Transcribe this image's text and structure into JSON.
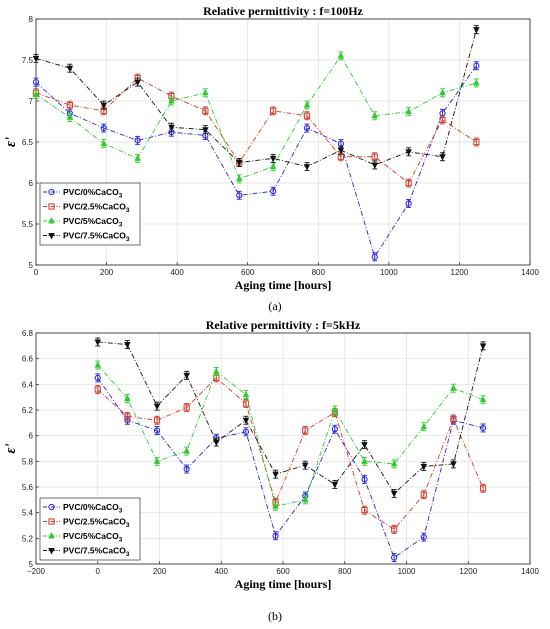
{
  "chart_data": [
    {
      "type": "line",
      "caption": "(a)",
      "title": "Relative permittivity : f=100Hz",
      "xlabel": "Aging time [hours]",
      "ylabel": "ε'",
      "xlim": [
        0,
        1400
      ],
      "ylim": [
        5,
        8
      ],
      "xticks": [
        0,
        200,
        400,
        600,
        800,
        1000,
        1200,
        1400
      ],
      "yticks": [
        5,
        5.5,
        6,
        6.5,
        7,
        7.5,
        8
      ],
      "ytick_labels": [
        "5",
        "5.5",
        "6",
        "6.5",
        "7",
        "7.5",
        "8"
      ],
      "grid": true,
      "legend_position": "bottom-left",
      "x": [
        0,
        96,
        192,
        288,
        384,
        480,
        576,
        672,
        768,
        864,
        960,
        1056,
        1152,
        1248
      ],
      "series": [
        {
          "name": "PVC/0%CaCO3",
          "color": "#2323e0",
          "marker": "circle",
          "values": [
            7.23,
            6.85,
            6.67,
            6.52,
            6.62,
            6.58,
            5.85,
            5.9,
            6.67,
            6.48,
            5.1,
            5.75,
            6.85,
            7.43
          ]
        },
        {
          "name": "PVC/2.5%CaCO3",
          "color": "#d23a2a",
          "marker": "square",
          "values": [
            7.1,
            6.95,
            6.88,
            7.28,
            7.06,
            6.88,
            6.25,
            6.88,
            6.82,
            6.32,
            6.32,
            6.0,
            6.77,
            6.5
          ]
        },
        {
          "name": "PVC/5%CaCO3",
          "color": "#2ecc2e",
          "marker": "triangle-up",
          "values": [
            7.08,
            6.8,
            6.48,
            6.3,
            7.0,
            7.1,
            6.05,
            6.2,
            6.95,
            7.55,
            6.82,
            6.87,
            7.1,
            7.22
          ]
        },
        {
          "name": "PVC/7.5%CaCO3",
          "color": "#111111",
          "marker": "triangle-down",
          "values": [
            7.52,
            7.4,
            6.95,
            7.23,
            6.68,
            6.65,
            6.25,
            6.3,
            6.2,
            6.4,
            6.22,
            6.38,
            6.32,
            7.87
          ]
        }
      ]
    },
    {
      "type": "line",
      "caption": "(b)",
      "title": "Relative permittivity : f=5kHz",
      "xlabel": "Aging time [hours]",
      "ylabel": "ε'",
      "xlim": [
        -200,
        1400
      ],
      "ylim": [
        5,
        6.8
      ],
      "xticks": [
        -200,
        0,
        200,
        400,
        600,
        800,
        1000,
        1200,
        1400
      ],
      "yticks": [
        5,
        5.2,
        5.4,
        5.6,
        5.8,
        6,
        6.2,
        6.4,
        6.6,
        6.8
      ],
      "ytick_labels": [
        "5",
        "5.2",
        "5.4",
        "5.6",
        "5.8",
        "6",
        "6.2",
        "6.4",
        "6.6",
        "6.8"
      ],
      "grid": true,
      "legend_position": "bottom-left",
      "x": [
        0,
        96,
        192,
        288,
        384,
        480,
        576,
        672,
        768,
        864,
        960,
        1056,
        1152,
        1248
      ],
      "series": [
        {
          "name": "PVC/0%CaCO3",
          "color": "#2323e0",
          "marker": "circle",
          "values": [
            6.45,
            6.12,
            6.04,
            5.74,
            5.98,
            6.03,
            5.22,
            5.53,
            6.05,
            5.66,
            5.05,
            5.21,
            6.12,
            6.06
          ]
        },
        {
          "name": "PVC/2.5%CaCO3",
          "color": "#d23a2a",
          "marker": "square",
          "values": [
            6.36,
            6.15,
            6.12,
            6.22,
            6.45,
            6.25,
            5.48,
            6.04,
            6.18,
            5.42,
            5.27,
            5.54,
            6.13,
            5.59
          ]
        },
        {
          "name": "PVC/5%CaCO3",
          "color": "#2ecc2e",
          "marker": "triangle-up",
          "values": [
            6.55,
            6.29,
            5.8,
            5.88,
            6.5,
            6.32,
            5.45,
            5.5,
            6.2,
            5.8,
            5.78,
            6.07,
            6.37,
            6.28
          ]
        },
        {
          "name": "PVC/7.5%CaCO3",
          "color": "#111111",
          "marker": "triangle-down",
          "values": [
            6.73,
            6.71,
            6.23,
            6.47,
            5.95,
            6.12,
            5.7,
            5.77,
            5.62,
            5.93,
            5.55,
            5.76,
            5.78,
            6.7
          ]
        }
      ]
    }
  ]
}
